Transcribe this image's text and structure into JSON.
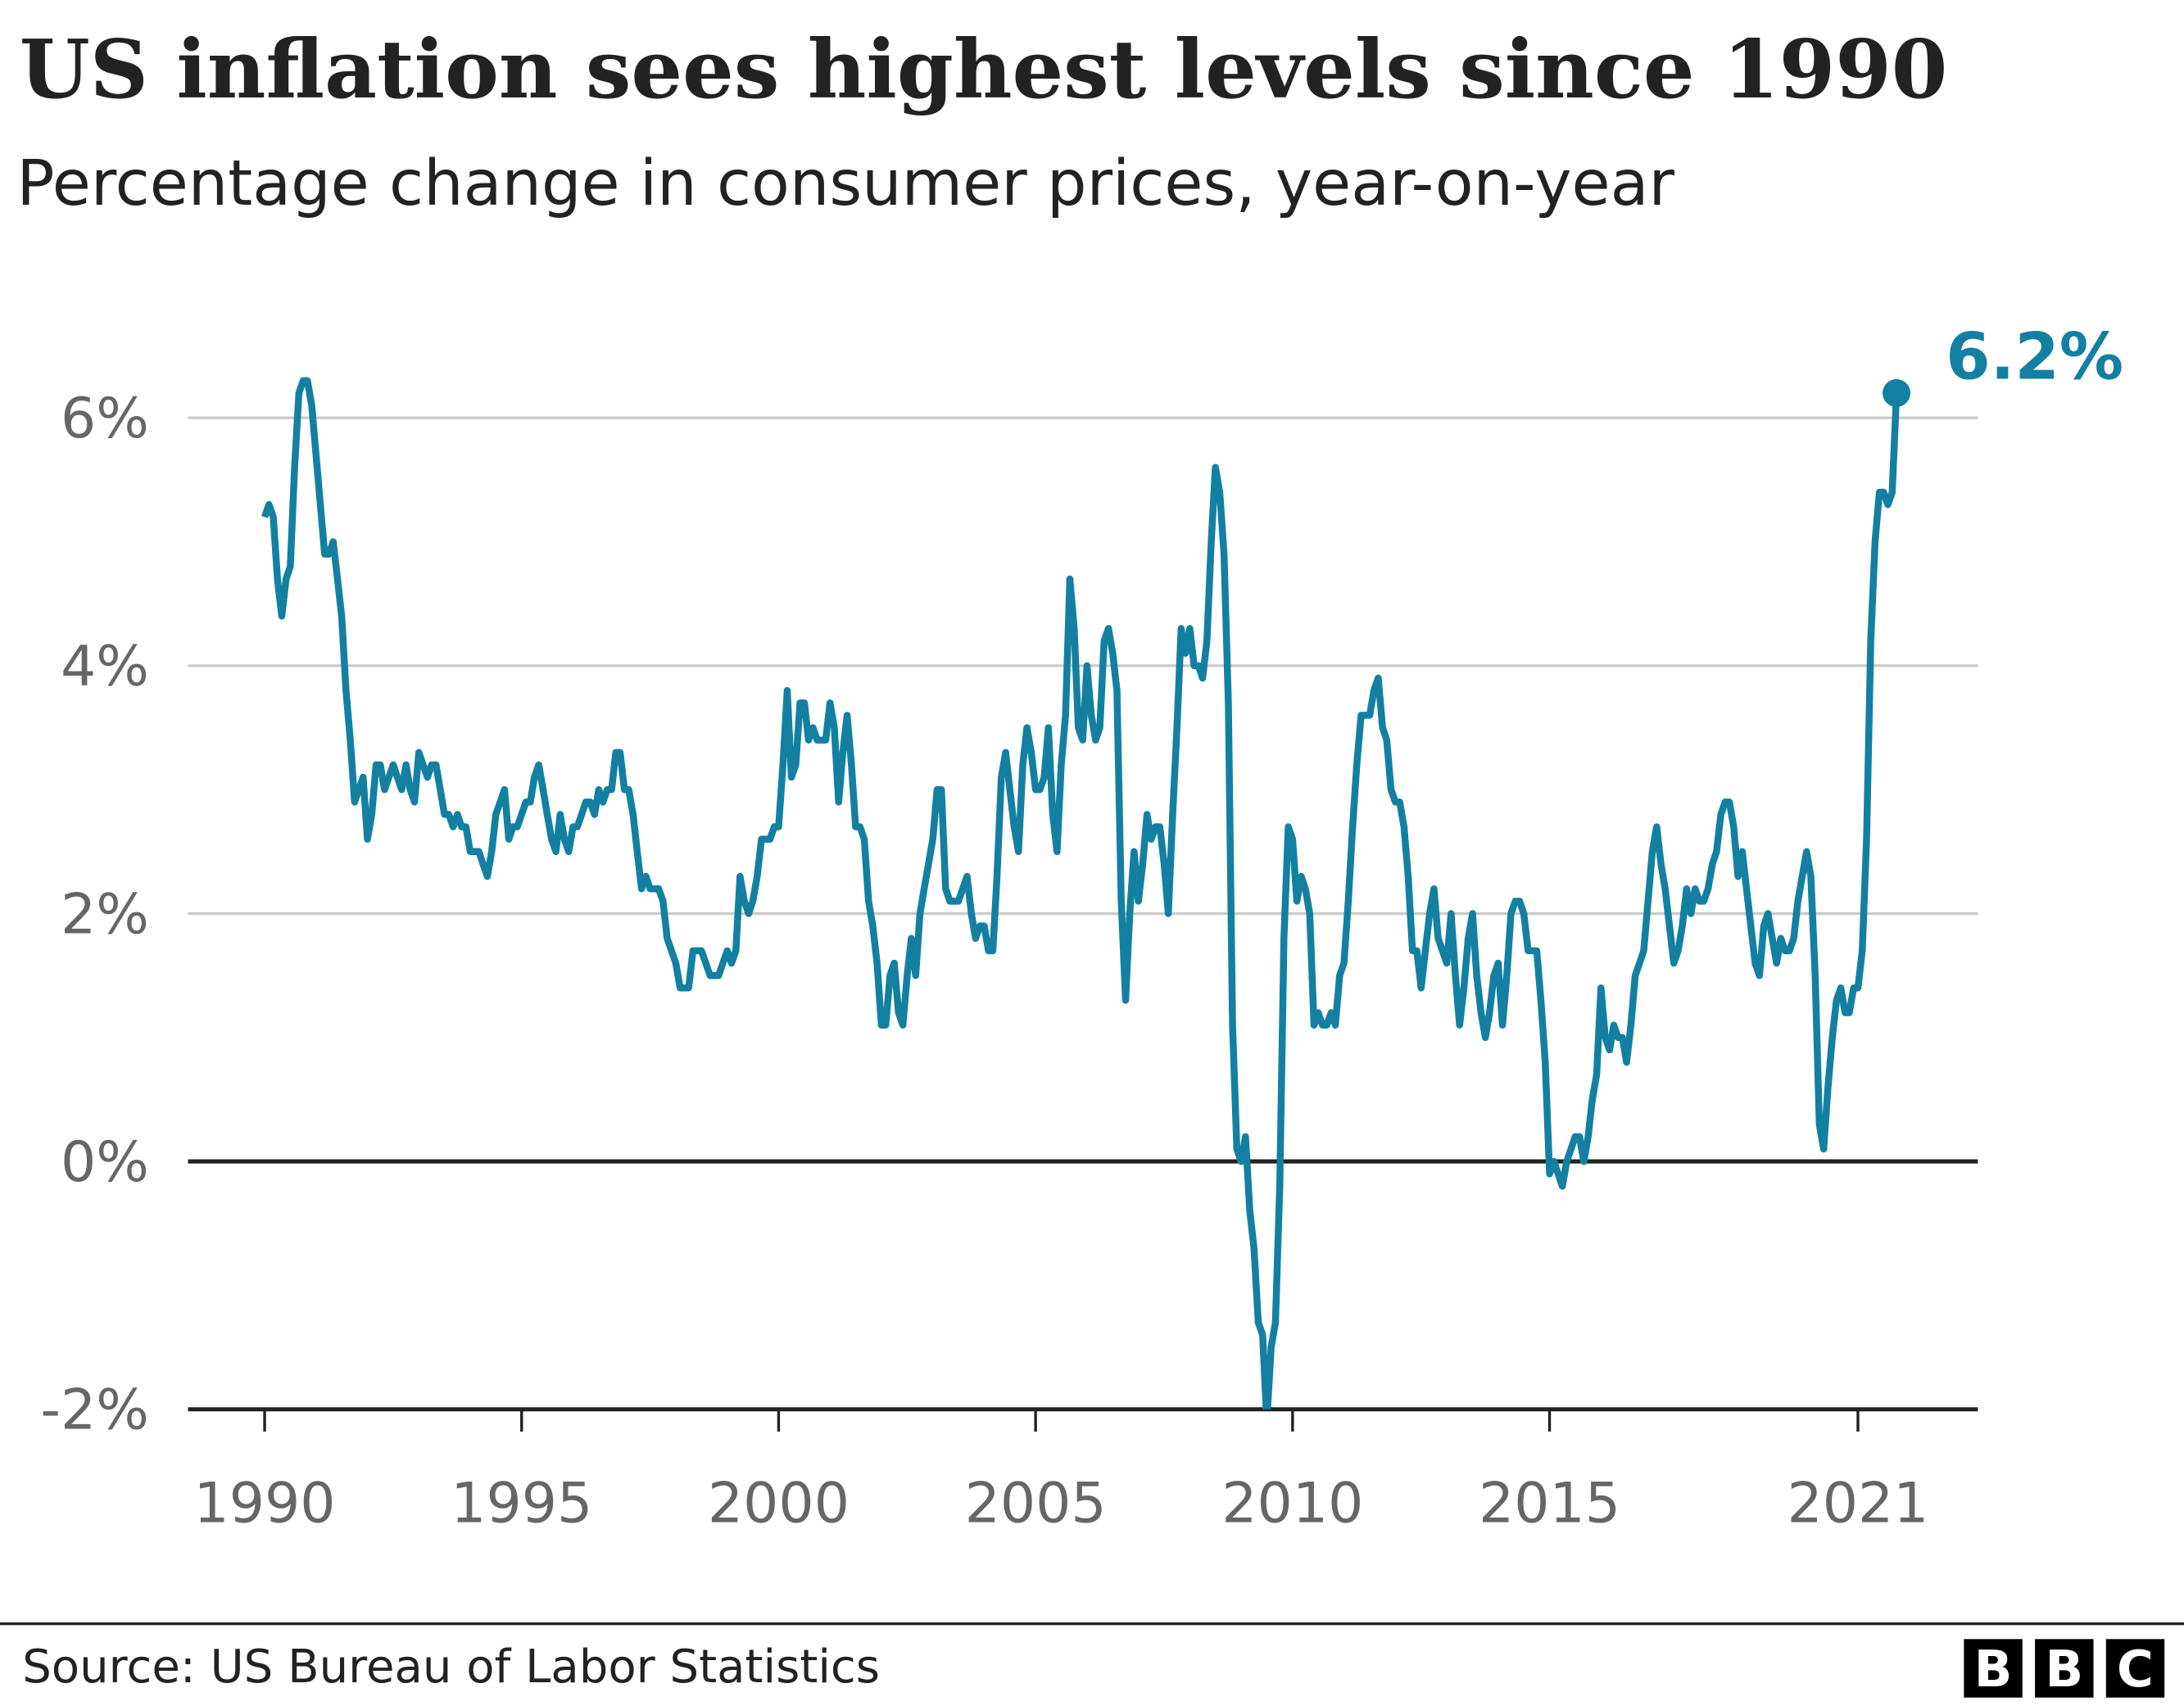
{
  "chart_data": {
    "type": "line",
    "title": "US inflation sees highest levels since 1990",
    "subtitle": "Percentage change in consumer prices, year-on-year",
    "xlabel": "",
    "ylabel": "",
    "x_ticks": [
      "1990",
      "1995",
      "2000",
      "2005",
      "2010",
      "2015",
      "2021"
    ],
    "y_ticks": [
      {
        "value": 6,
        "label": "6%"
      },
      {
        "value": 4,
        "label": "4%"
      },
      {
        "value": 2,
        "label": "2%"
      },
      {
        "value": 0,
        "label": "0%"
      },
      {
        "value": -2,
        "label": "-2%"
      }
    ],
    "ylim": [
      -2,
      7
    ],
    "xlim": [
      1988.5,
      2023.3
    ],
    "grid": "horizontal",
    "line_color": "#1380A1",
    "end_label": "6.2%",
    "end_point": {
      "date": "2021-10",
      "value": 6.2
    },
    "series": [
      {
        "frequency": "monthly",
        "values_by_year": {
          "1990": [
            5.2,
            5.3,
            5.2,
            4.7,
            4.4,
            4.7,
            4.8,
            5.6,
            6.2,
            6.3,
            6.3,
            6.1
          ],
          "1991": [
            5.7,
            5.3,
            4.9,
            4.9,
            5.0,
            4.7,
            4.4,
            3.8,
            3.4,
            2.9,
            3.0,
            3.1
          ],
          "1992": [
            2.6,
            2.8,
            3.2,
            3.2,
            3.0,
            3.1,
            3.2,
            3.1,
            3.0,
            3.2,
            3.0,
            2.9
          ],
          "1993": [
            3.3,
            3.2,
            3.1,
            3.2,
            3.2,
            3.0,
            2.8,
            2.8,
            2.7,
            2.8,
            2.7,
            2.7
          ],
          "1994": [
            2.5,
            2.5,
            2.5,
            2.4,
            2.3,
            2.5,
            2.8,
            2.9,
            3.0,
            2.6,
            2.7,
            2.7
          ],
          "1995": [
            2.8,
            2.9,
            2.9,
            3.1,
            3.2,
            3.0,
            2.8,
            2.6,
            2.5,
            2.8,
            2.6,
            2.5
          ],
          "1996": [
            2.7,
            2.7,
            2.8,
            2.9,
            2.9,
            2.8,
            3.0,
            2.9,
            3.0,
            3.0,
            3.3,
            3.3
          ],
          "1997": [
            3.0,
            3.0,
            2.8,
            2.5,
            2.2,
            2.3,
            2.2,
            2.2,
            2.2,
            2.1,
            1.8,
            1.7
          ],
          "1998": [
            1.6,
            1.4,
            1.4,
            1.4,
            1.7,
            1.7,
            1.7,
            1.6,
            1.5,
            1.5,
            1.5,
            1.6
          ],
          "1999": [
            1.7,
            1.6,
            1.7,
            2.3,
            2.1,
            2.0,
            2.1,
            2.3,
            2.6,
            2.6,
            2.6,
            2.7
          ],
          "2000": [
            2.7,
            3.2,
            3.8,
            3.1,
            3.2,
            3.7,
            3.7,
            3.4,
            3.5,
            3.4,
            3.4,
            3.4
          ],
          "2001": [
            3.7,
            3.5,
            2.9,
            3.3,
            3.6,
            3.2,
            2.7,
            2.7,
            2.6,
            2.1,
            1.9,
            1.6
          ],
          "2002": [
            1.1,
            1.1,
            1.5,
            1.6,
            1.2,
            1.1,
            1.5,
            1.8,
            1.5,
            2.0,
            2.2,
            2.4
          ],
          "2003": [
            2.6,
            3.0,
            3.0,
            2.2,
            2.1,
            2.1,
            2.1,
            2.2,
            2.3,
            2.0,
            1.8,
            1.9
          ],
          "2004": [
            1.9,
            1.7,
            1.7,
            2.3,
            3.1,
            3.3,
            3.0,
            2.7,
            2.5,
            3.2,
            3.5,
            3.3
          ],
          "2005": [
            3.0,
            3.0,
            3.1,
            3.5,
            2.8,
            2.5,
            3.2,
            3.6,
            4.7,
            4.3,
            3.5,
            3.4
          ],
          "2006": [
            4.0,
            3.6,
            3.4,
            3.5,
            4.2,
            4.3,
            4.1,
            3.8,
            2.1,
            1.3,
            2.0,
            2.5
          ],
          "2007": [
            2.1,
            2.4,
            2.8,
            2.6,
            2.7,
            2.7,
            2.4,
            2.0,
            2.8,
            3.5,
            4.3,
            4.1
          ],
          "2008": [
            4.3,
            4.0,
            4.0,
            3.9,
            4.2,
            5.0,
            5.6,
            5.4,
            4.9,
            3.7,
            1.1,
            0.1
          ],
          "2009": [
            0.0,
            0.2,
            -0.4,
            -0.7,
            -1.3,
            -1.4,
            -2.1,
            -1.5,
            -1.3,
            -0.2,
            1.8,
            2.7
          ],
          "2010": [
            2.6,
            2.1,
            2.3,
            2.2,
            2.0,
            1.1,
            1.2,
            1.1,
            1.1,
            1.2,
            1.1,
            1.5
          ],
          "2011": [
            1.6,
            2.1,
            2.7,
            3.2,
            3.6,
            3.6,
            3.6,
            3.8,
            3.9,
            3.5,
            3.4,
            3.0
          ],
          "2012": [
            2.9,
            2.9,
            2.7,
            2.3,
            1.7,
            1.7,
            1.4,
            1.7,
            2.0,
            2.2,
            1.8,
            1.7
          ],
          "2013": [
            1.6,
            2.0,
            1.5,
            1.1,
            1.4,
            1.8,
            2.0,
            1.5,
            1.2,
            1.0,
            1.2,
            1.5
          ],
          "2014": [
            1.6,
            1.1,
            1.5,
            2.0,
            2.1,
            2.1,
            2.0,
            1.7,
            1.7,
            1.7,
            1.3,
            0.8
          ],
          "2015": [
            -0.1,
            0.0,
            -0.1,
            -0.2,
            0.0,
            0.1,
            0.2,
            0.2,
            0.0,
            0.2,
            0.5,
            0.7
          ],
          "2016": [
            1.4,
            1.0,
            0.9,
            1.1,
            1.0,
            1.0,
            0.8,
            1.1,
            1.5,
            1.6,
            1.7,
            2.1
          ],
          "2017": [
            2.5,
            2.7,
            2.4,
            2.2,
            1.9,
            1.6,
            1.7,
            1.9,
            2.2,
            2.0,
            2.2,
            2.1
          ],
          "2018": [
            2.1,
            2.2,
            2.4,
            2.5,
            2.8,
            2.9,
            2.9,
            2.7,
            2.3,
            2.5,
            2.2,
            1.9
          ],
          "2019": [
            1.6,
            1.5,
            1.9,
            2.0,
            1.8,
            1.6,
            1.8,
            1.7,
            1.7,
            1.8,
            2.1,
            2.3
          ],
          "2020": [
            2.5,
            2.3,
            1.5,
            0.3,
            0.1,
            0.6,
            1.0,
            1.3,
            1.4,
            1.2,
            1.2,
            1.4
          ],
          "2021": [
            1.4,
            1.7,
            2.6,
            4.2,
            5.0,
            5.4,
            5.4,
            5.3,
            5.4,
            6.2
          ]
        }
      }
    ]
  },
  "footer": {
    "source": "Source: US Bureau of Labor Statistics",
    "logo_letters": [
      "B",
      "B",
      "C"
    ]
  }
}
